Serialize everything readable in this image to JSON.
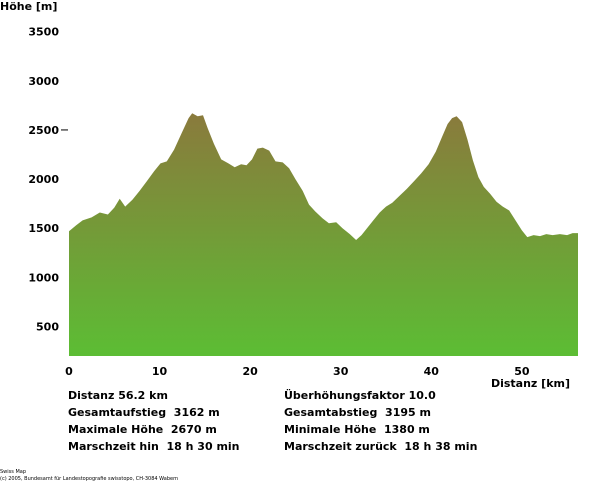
{
  "chart_data": {
    "type": "area",
    "ylabel": "Höhe [m]",
    "xlabel": "Distanz [km]",
    "xlim": [
      0,
      56.2
    ],
    "ylim": [
      200,
      3700
    ],
    "xticks": [
      0,
      10,
      20,
      30,
      40,
      50
    ],
    "yticks": [
      500,
      1000,
      1500,
      2000,
      2500,
      3000,
      3500
    ],
    "grid": false,
    "fill_colors": [
      "#8a7a3c",
      "#5cbd34"
    ],
    "x": [
      0,
      0.8,
      1.5,
      2.5,
      3.4,
      4.3,
      5.0,
      5.6,
      6.2,
      7.0,
      7.8,
      8.6,
      9.4,
      10.1,
      10.8,
      11.6,
      12.4,
      13.2,
      13.6,
      14.2,
      14.8,
      15.3,
      16.0,
      16.8,
      17.6,
      18.3,
      19.0,
      19.6,
      20.2,
      20.8,
      21.4,
      22.1,
      22.8,
      23.6,
      24.3,
      25.0,
      25.8,
      26.5,
      27.2,
      28.0,
      28.7,
      29.5,
      30.2,
      31.0,
      31.7,
      32.3,
      32.9,
      33.6,
      34.3,
      35.0,
      35.7,
      36.5,
      37.3,
      38.1,
      38.9,
      39.7,
      40.5,
      41.2,
      41.8,
      42.3,
      42.8,
      43.4,
      44.0,
      44.6,
      45.2,
      45.8,
      46.5,
      47.2,
      47.9,
      48.6,
      49.3,
      50.0,
      50.6,
      51.3,
      52.0,
      52.7,
      53.4,
      54.2,
      55.0,
      55.6,
      56.2
    ],
    "y": [
      1470,
      1530,
      1580,
      1610,
      1660,
      1640,
      1710,
      1800,
      1720,
      1790,
      1880,
      1980,
      2080,
      2160,
      2180,
      2300,
      2460,
      2620,
      2670,
      2640,
      2650,
      2520,
      2360,
      2200,
      2160,
      2120,
      2150,
      2140,
      2200,
      2310,
      2320,
      2290,
      2180,
      2170,
      2110,
      2000,
      1880,
      1740,
      1670,
      1600,
      1550,
      1560,
      1500,
      1440,
      1380,
      1430,
      1500,
      1580,
      1660,
      1720,
      1760,
      1830,
      1900,
      1980,
      2060,
      2150,
      2280,
      2430,
      2560,
      2620,
      2640,
      2580,
      2400,
      2190,
      2020,
      1920,
      1850,
      1770,
      1720,
      1680,
      1580,
      1480,
      1410,
      1430,
      1420,
      1440,
      1430,
      1440,
      1430,
      1450,
      1450
    ]
  },
  "stats": {
    "distance": "Distanz 56.2 km",
    "exaggeration": "Überhöhungsfaktor 10.0",
    "ascent": "Gesamtaufstieg  3162 m",
    "descent": "Gesamtabstieg  3195 m",
    "max_height": "Maximale Höhe  2670 m",
    "min_height": "Minimale Höhe  1380 m",
    "time_out": "Marschzeit hin  18 h 30 min",
    "time_back": "Marschzeit zurück  18 h 38 min"
  },
  "footer": {
    "line1": "Swiss Map",
    "line2": "(c) 2005, Bundesamt für Landestopografie swisstopo, CH-3084 Wabern"
  }
}
